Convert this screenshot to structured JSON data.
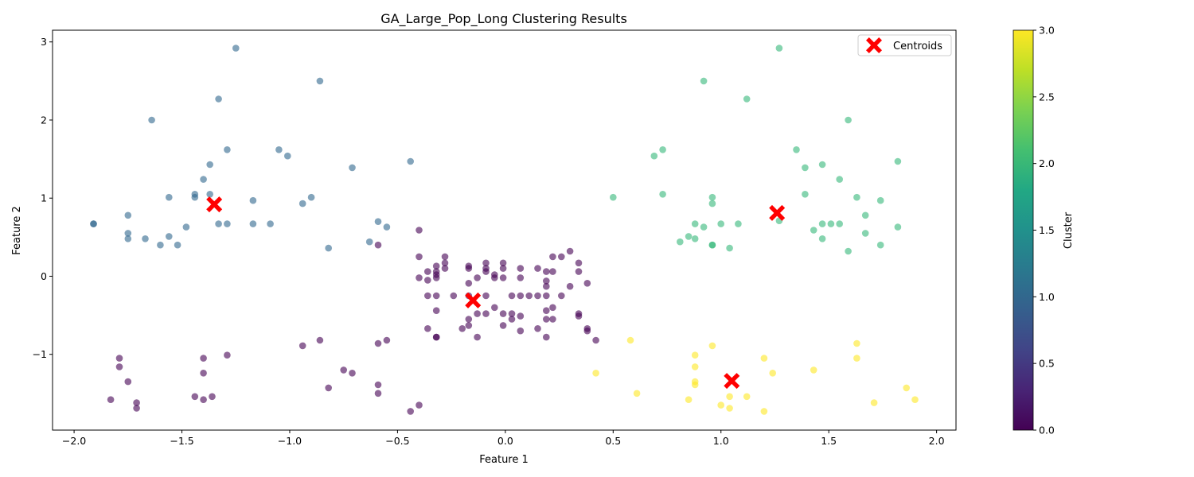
{
  "chart_data": {
    "type": "scatter",
    "title": "GA_Large_Pop_Long Clustering Results",
    "xlabel": "Feature 1",
    "ylabel": "Feature 2",
    "xlim": [
      -2.1,
      2.09
    ],
    "ylim": [
      -1.97,
      3.15
    ],
    "x_ticks": [
      -2.0,
      -1.5,
      -1.0,
      -0.5,
      0.0,
      0.5,
      1.0,
      1.5,
      2.0
    ],
    "x_tick_labels": [
      "−2.0",
      "−1.5",
      "−1.0",
      "−0.5",
      "0.0",
      "0.5",
      "1.0",
      "1.5",
      "2.0"
    ],
    "y_ticks": [
      -1,
      0,
      1,
      2,
      3
    ],
    "y_tick_labels": [
      "−1",
      "0",
      "1",
      "2",
      "3"
    ],
    "grid": false,
    "legend": {
      "placement": "top-right",
      "entries": [
        "Centroids"
      ]
    },
    "colorbar": {
      "label": "Cluster",
      "range": [
        0.0,
        3.0
      ],
      "ticks": [
        0.0,
        0.5,
        1.0,
        1.5,
        2.0,
        2.5,
        3.0
      ],
      "tick_labels": [
        "0.0",
        "0.5",
        "1.0",
        "1.5",
        "2.0",
        "2.5",
        "3.0"
      ],
      "colormap": "viridis"
    },
    "cluster_colors": [
      "#440154",
      "#31688e",
      "#35b779",
      "#fde725"
    ],
    "centroid_color": "#ff0000",
    "point_alpha": 0.6,
    "series": [
      {
        "cluster": 0,
        "points": [
          [
            -0.4,
            0.59
          ],
          [
            -0.59,
            0.4
          ],
          [
            -0.4,
            0.25
          ],
          [
            -0.28,
            0.25
          ],
          [
            -0.32,
            0.13
          ],
          [
            -0.28,
            0.17
          ],
          [
            -0.17,
            0.13
          ],
          [
            -0.09,
            0.17
          ],
          [
            -0.01,
            0.17
          ],
          [
            0.07,
            0.1
          ],
          [
            0.15,
            0.1
          ],
          [
            0.22,
            0.25
          ],
          [
            0.26,
            0.25
          ],
          [
            0.3,
            0.32
          ],
          [
            0.34,
            0.17
          ],
          [
            -0.28,
            0.1
          ],
          [
            -0.17,
            0.1
          ],
          [
            -0.09,
            0.06
          ],
          [
            -0.09,
            0.1
          ],
          [
            0.34,
            0.06
          ],
          [
            0.22,
            0.06
          ],
          [
            0.19,
            0.06
          ],
          [
            -0.4,
            -0.02
          ],
          [
            -0.36,
            0.06
          ],
          [
            -0.36,
            -0.05
          ],
          [
            -0.32,
            0.06
          ],
          [
            -0.32,
            0.02
          ],
          [
            -0.32,
            -0.02
          ],
          [
            -0.13,
            -0.02
          ],
          [
            -0.05,
            0.02
          ],
          [
            -0.05,
            -0.02
          ],
          [
            -0.01,
            0.1
          ],
          [
            -0.01,
            -0.02
          ],
          [
            0.07,
            -0.02
          ],
          [
            0.19,
            -0.06
          ],
          [
            0.19,
            -0.13
          ],
          [
            0.3,
            -0.13
          ],
          [
            0.38,
            -0.09
          ],
          [
            -0.17,
            -0.09
          ],
          [
            -0.36,
            -0.25
          ],
          [
            -0.32,
            -0.25
          ],
          [
            -0.24,
            -0.25
          ],
          [
            -0.17,
            -0.25
          ],
          [
            -0.09,
            -0.25
          ],
          [
            0.03,
            -0.25
          ],
          [
            0.07,
            -0.25
          ],
          [
            0.11,
            -0.25
          ],
          [
            0.15,
            -0.25
          ],
          [
            0.19,
            -0.25
          ],
          [
            0.26,
            -0.25
          ],
          [
            -0.32,
            -0.44
          ],
          [
            -0.13,
            -0.48
          ],
          [
            -0.09,
            -0.48
          ],
          [
            -0.05,
            -0.4
          ],
          [
            -0.01,
            -0.48
          ],
          [
            0.03,
            -0.48
          ],
          [
            0.03,
            -0.55
          ],
          [
            0.07,
            -0.51
          ],
          [
            0.19,
            -0.44
          ],
          [
            0.22,
            -0.4
          ],
          [
            0.22,
            -0.55
          ],
          [
            0.19,
            -0.55
          ],
          [
            0.34,
            -0.48
          ],
          [
            0.34,
            -0.51
          ],
          [
            -0.17,
            -0.55
          ],
          [
            -0.36,
            -0.67
          ],
          [
            -0.2,
            -0.67
          ],
          [
            -0.17,
            -0.63
          ],
          [
            -0.01,
            -0.63
          ],
          [
            0.07,
            -0.7
          ],
          [
            0.15,
            -0.67
          ],
          [
            0.38,
            -0.67
          ],
          [
            0.38,
            -0.7
          ],
          [
            -0.32,
            -0.78
          ],
          [
            -0.32,
            -0.78
          ],
          [
            -0.13,
            -0.78
          ],
          [
            0.19,
            -0.78
          ],
          [
            0.42,
            -0.82
          ],
          [
            -0.94,
            -0.89
          ],
          [
            -0.86,
            -0.82
          ],
          [
            -0.59,
            -0.86
          ],
          [
            -0.55,
            -0.82
          ],
          [
            -1.29,
            -1.01
          ],
          [
            -1.4,
            -1.05
          ],
          [
            -1.4,
            -1.24
          ],
          [
            -1.79,
            -1.05
          ],
          [
            -1.79,
            -1.16
          ],
          [
            -1.75,
            -1.35
          ],
          [
            -0.75,
            -1.2
          ],
          [
            -0.71,
            -1.24
          ],
          [
            -0.82,
            -1.43
          ],
          [
            -0.59,
            -1.39
          ],
          [
            -0.59,
            -1.5
          ],
          [
            -1.83,
            -1.58
          ],
          [
            -1.71,
            -1.62
          ],
          [
            -1.71,
            -1.69
          ],
          [
            -1.44,
            -1.54
          ],
          [
            -1.4,
            -1.58
          ],
          [
            -1.36,
            -1.54
          ],
          [
            -0.44,
            -1.73
          ],
          [
            -0.4,
            -1.65
          ]
        ]
      },
      {
        "cluster": 1,
        "points": [
          [
            -1.25,
            2.92
          ],
          [
            -0.86,
            2.5
          ],
          [
            -1.33,
            2.27
          ],
          [
            -1.64,
            2.0
          ],
          [
            -1.29,
            1.62
          ],
          [
            -1.05,
            1.62
          ],
          [
            -1.01,
            1.54
          ],
          [
            -1.37,
            1.43
          ],
          [
            -1.4,
            1.24
          ],
          [
            -0.71,
            1.39
          ],
          [
            -0.44,
            1.47
          ],
          [
            -1.44,
            1.05
          ],
          [
            -1.44,
            1.01
          ],
          [
            -1.56,
            1.01
          ],
          [
            -1.37,
            1.05
          ],
          [
            -1.17,
            0.97
          ],
          [
            -0.9,
            1.01
          ],
          [
            -0.94,
            0.93
          ],
          [
            -1.91,
            0.67
          ],
          [
            -1.91,
            0.67
          ],
          [
            -1.75,
            0.78
          ],
          [
            -1.75,
            0.55
          ],
          [
            -1.75,
            0.48
          ],
          [
            -1.67,
            0.48
          ],
          [
            -1.56,
            0.51
          ],
          [
            -1.6,
            0.4
          ],
          [
            -1.52,
            0.4
          ],
          [
            -1.48,
            0.63
          ],
          [
            -1.33,
            0.67
          ],
          [
            -1.29,
            0.67
          ],
          [
            -1.17,
            0.67
          ],
          [
            -1.09,
            0.67
          ],
          [
            -0.59,
            0.7
          ],
          [
            -0.55,
            0.63
          ],
          [
            -0.63,
            0.44
          ],
          [
            -0.82,
            0.36
          ]
        ]
      },
      {
        "cluster": 2,
        "points": [
          [
            1.27,
            2.92
          ],
          [
            0.92,
            2.5
          ],
          [
            1.12,
            2.27
          ],
          [
            1.59,
            2.0
          ],
          [
            0.69,
            1.54
          ],
          [
            0.73,
            1.62
          ],
          [
            1.35,
            1.62
          ],
          [
            1.39,
            1.39
          ],
          [
            1.47,
            1.43
          ],
          [
            1.55,
            1.24
          ],
          [
            1.82,
            1.47
          ],
          [
            0.5,
            1.01
          ],
          [
            0.73,
            1.05
          ],
          [
            0.96,
            1.01
          ],
          [
            0.96,
            0.93
          ],
          [
            1.39,
            1.05
          ],
          [
            1.63,
            1.01
          ],
          [
            1.74,
            0.97
          ],
          [
            0.88,
            0.67
          ],
          [
            1.0,
            0.67
          ],
          [
            1.08,
            0.67
          ],
          [
            1.27,
            0.71
          ],
          [
            1.47,
            0.67
          ],
          [
            1.51,
            0.67
          ],
          [
            1.55,
            0.67
          ],
          [
            1.67,
            0.78
          ],
          [
            1.67,
            0.55
          ],
          [
            1.43,
            0.59
          ],
          [
            1.47,
            0.48
          ],
          [
            1.82,
            0.63
          ],
          [
            1.74,
            0.4
          ],
          [
            1.59,
            0.32
          ],
          [
            0.81,
            0.44
          ],
          [
            0.85,
            0.51
          ],
          [
            0.88,
            0.48
          ],
          [
            0.92,
            0.63
          ],
          [
            0.96,
            0.4
          ],
          [
            0.96,
            0.4
          ],
          [
            1.04,
            0.36
          ]
        ]
      },
      {
        "cluster": 3,
        "points": [
          [
            0.58,
            -0.82
          ],
          [
            0.96,
            -0.89
          ],
          [
            0.88,
            -1.01
          ],
          [
            0.88,
            -1.16
          ],
          [
            0.42,
            -1.24
          ],
          [
            1.2,
            -1.05
          ],
          [
            1.24,
            -1.24
          ],
          [
            1.43,
            -1.2
          ],
          [
            1.63,
            -0.86
          ],
          [
            1.63,
            -1.05
          ],
          [
            0.88,
            -1.35
          ],
          [
            0.88,
            -1.39
          ],
          [
            0.61,
            -1.5
          ],
          [
            0.85,
            -1.58
          ],
          [
            1.04,
            -1.54
          ],
          [
            1.12,
            -1.54
          ],
          [
            1.0,
            -1.65
          ],
          [
            1.04,
            -1.69
          ],
          [
            1.2,
            -1.73
          ],
          [
            1.71,
            -1.62
          ],
          [
            1.86,
            -1.43
          ],
          [
            1.9,
            -1.58
          ]
        ]
      }
    ],
    "centroids": [
      [
        -1.35,
        0.92
      ],
      [
        -0.15,
        -0.31
      ],
      [
        1.26,
        0.81
      ],
      [
        1.05,
        -1.34
      ]
    ]
  }
}
